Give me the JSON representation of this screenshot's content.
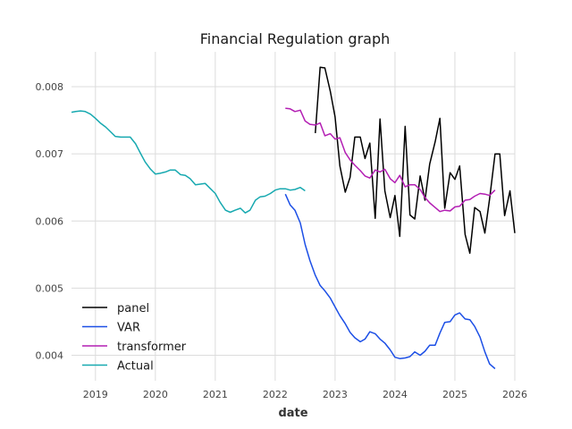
{
  "chart_data": {
    "type": "line",
    "title": "Financial Regulation graph",
    "xlabel": "date",
    "ylabel": "",
    "xlim": [
      2018.6,
      2026.0
    ],
    "ylim": [
      0.00362,
      0.00852
    ],
    "x_ticks": [
      2019,
      2020,
      2021,
      2022,
      2023,
      2024,
      2025,
      2026
    ],
    "x_tick_labels": [
      "2019",
      "2020",
      "2021",
      "2022",
      "2023",
      "2024",
      "2025",
      "2026"
    ],
    "y_ticks": [
      0.004,
      0.005,
      0.006,
      0.007,
      0.008
    ],
    "y_tick_labels": [
      "0.004",
      "0.005",
      "0.006",
      "0.007",
      "0.008"
    ],
    "grid": true,
    "legend_position": "lower-left",
    "series": [
      {
        "name": "panel",
        "color": "#000000",
        "points": [
          [
            2022.67,
            0.00731
          ],
          [
            2022.75,
            0.00829
          ],
          [
            2022.83,
            0.00828
          ],
          [
            2022.92,
            0.00793
          ],
          [
            2023.0,
            0.00755
          ],
          [
            2023.08,
            0.00682
          ],
          [
            2023.17,
            0.00643
          ],
          [
            2023.25,
            0.00665
          ],
          [
            2023.33,
            0.00725
          ],
          [
            2023.42,
            0.00725
          ],
          [
            2023.5,
            0.00693
          ],
          [
            2023.58,
            0.00716
          ],
          [
            2023.67,
            0.00604
          ],
          [
            2023.75,
            0.00752
          ],
          [
            2023.83,
            0.00645
          ],
          [
            2023.92,
            0.00605
          ],
          [
            2024.0,
            0.00638
          ],
          [
            2024.08,
            0.00577
          ],
          [
            2024.17,
            0.00741
          ],
          [
            2024.25,
            0.00609
          ],
          [
            2024.33,
            0.00603
          ],
          [
            2024.42,
            0.00667
          ],
          [
            2024.5,
            0.00631
          ],
          [
            2024.58,
            0.00685
          ],
          [
            2024.67,
            0.00718
          ],
          [
            2024.75,
            0.00753
          ],
          [
            2024.83,
            0.00619
          ],
          [
            2024.92,
            0.00672
          ],
          [
            2025.0,
            0.00662
          ],
          [
            2025.08,
            0.00682
          ],
          [
            2025.17,
            0.0058
          ],
          [
            2025.25,
            0.00552
          ],
          [
            2025.33,
            0.0062
          ],
          [
            2025.42,
            0.00614
          ],
          [
            2025.5,
            0.00582
          ],
          [
            2025.58,
            0.00633
          ],
          [
            2025.67,
            0.007
          ],
          [
            2025.75,
            0.007
          ],
          [
            2025.83,
            0.00608
          ],
          [
            2025.92,
            0.00645
          ],
          [
            2026.0,
            0.00582
          ]
        ]
      },
      {
        "name": "VAR",
        "color": "#1c4fe6",
        "points": [
          [
            2022.17,
            0.0064
          ],
          [
            2022.25,
            0.00624
          ],
          [
            2022.33,
            0.00616
          ],
          [
            2022.42,
            0.00597
          ],
          [
            2022.5,
            0.00565
          ],
          [
            2022.58,
            0.00541
          ],
          [
            2022.67,
            0.00519
          ],
          [
            2022.75,
            0.00504
          ],
          [
            2022.83,
            0.00496
          ],
          [
            2022.92,
            0.00485
          ],
          [
            2023.0,
            0.00472
          ],
          [
            2023.08,
            0.00459
          ],
          [
            2023.17,
            0.00447
          ],
          [
            2023.25,
            0.00434
          ],
          [
            2023.33,
            0.00426
          ],
          [
            2023.42,
            0.0042
          ],
          [
            2023.5,
            0.00424
          ],
          [
            2023.58,
            0.00435
          ],
          [
            2023.67,
            0.00432
          ],
          [
            2023.75,
            0.00424
          ],
          [
            2023.83,
            0.00418
          ],
          [
            2023.92,
            0.00408
          ],
          [
            2024.0,
            0.00397
          ],
          [
            2024.08,
            0.00395
          ],
          [
            2024.17,
            0.00396
          ],
          [
            2024.25,
            0.00398
          ],
          [
            2024.33,
            0.00405
          ],
          [
            2024.42,
            0.004
          ],
          [
            2024.5,
            0.00406
          ],
          [
            2024.58,
            0.00415
          ],
          [
            2024.67,
            0.00415
          ],
          [
            2024.75,
            0.00433
          ],
          [
            2024.83,
            0.00449
          ],
          [
            2024.92,
            0.0045
          ],
          [
            2025.0,
            0.0046
          ],
          [
            2025.08,
            0.00463
          ],
          [
            2025.17,
            0.00454
          ],
          [
            2025.25,
            0.00453
          ],
          [
            2025.33,
            0.00443
          ],
          [
            2025.42,
            0.00427
          ],
          [
            2025.5,
            0.00405
          ],
          [
            2025.58,
            0.00387
          ],
          [
            2025.67,
            0.0038
          ]
        ]
      },
      {
        "name": "transformer",
        "color": "#b31eb3",
        "points": [
          [
            2022.17,
            0.00768
          ],
          [
            2022.25,
            0.00767
          ],
          [
            2022.33,
            0.00763
          ],
          [
            2022.42,
            0.00765
          ],
          [
            2022.5,
            0.00749
          ],
          [
            2022.58,
            0.00744
          ],
          [
            2022.67,
            0.00743
          ],
          [
            2022.75,
            0.00746
          ],
          [
            2022.83,
            0.00727
          ],
          [
            2022.92,
            0.0073
          ],
          [
            2023.0,
            0.00722
          ],
          [
            2023.08,
            0.00724
          ],
          [
            2023.17,
            0.00702
          ],
          [
            2023.25,
            0.00691
          ],
          [
            2023.33,
            0.00683
          ],
          [
            2023.42,
            0.00675
          ],
          [
            2023.5,
            0.00667
          ],
          [
            2023.58,
            0.00664
          ],
          [
            2023.67,
            0.00676
          ],
          [
            2023.75,
            0.00673
          ],
          [
            2023.83,
            0.00677
          ],
          [
            2023.92,
            0.00663
          ],
          [
            2024.0,
            0.00657
          ],
          [
            2024.08,
            0.00668
          ],
          [
            2024.17,
            0.00651
          ],
          [
            2024.25,
            0.00654
          ],
          [
            2024.33,
            0.00654
          ],
          [
            2024.42,
            0.00647
          ],
          [
            2024.5,
            0.00635
          ],
          [
            2024.58,
            0.00627
          ],
          [
            2024.67,
            0.0062
          ],
          [
            2024.75,
            0.00614
          ],
          [
            2024.83,
            0.00616
          ],
          [
            2024.92,
            0.00615
          ],
          [
            2025.0,
            0.00621
          ],
          [
            2025.08,
            0.00622
          ],
          [
            2025.17,
            0.00631
          ],
          [
            2025.25,
            0.00632
          ],
          [
            2025.33,
            0.00637
          ],
          [
            2025.42,
            0.00641
          ],
          [
            2025.5,
            0.0064
          ],
          [
            2025.58,
            0.00638
          ],
          [
            2025.67,
            0.00646
          ]
        ]
      },
      {
        "name": "Actual",
        "color": "#17a9b0",
        "points": [
          [
            2018.6,
            0.00762
          ],
          [
            2018.67,
            0.00763
          ],
          [
            2018.75,
            0.00764
          ],
          [
            2018.83,
            0.00763
          ],
          [
            2018.92,
            0.00759
          ],
          [
            2019.0,
            0.00753
          ],
          [
            2019.08,
            0.00746
          ],
          [
            2019.17,
            0.0074
          ],
          [
            2019.25,
            0.00733
          ],
          [
            2019.33,
            0.00726
          ],
          [
            2019.42,
            0.00725
          ],
          [
            2019.5,
            0.00725
          ],
          [
            2019.58,
            0.00725
          ],
          [
            2019.67,
            0.00715
          ],
          [
            2019.75,
            0.00701
          ],
          [
            2019.83,
            0.00688
          ],
          [
            2019.92,
            0.00677
          ],
          [
            2020.0,
            0.0067
          ],
          [
            2020.08,
            0.00671
          ],
          [
            2020.17,
            0.00673
          ],
          [
            2020.25,
            0.00676
          ],
          [
            2020.33,
            0.00676
          ],
          [
            2020.42,
            0.00669
          ],
          [
            2020.5,
            0.00668
          ],
          [
            2020.58,
            0.00663
          ],
          [
            2020.67,
            0.00654
          ],
          [
            2020.75,
            0.00655
          ],
          [
            2020.83,
            0.00656
          ],
          [
            2020.92,
            0.00648
          ],
          [
            2021.0,
            0.00641
          ],
          [
            2021.08,
            0.00628
          ],
          [
            2021.17,
            0.00616
          ],
          [
            2021.25,
            0.00613
          ],
          [
            2021.33,
            0.00616
          ],
          [
            2021.42,
            0.00619
          ],
          [
            2021.5,
            0.00612
          ],
          [
            2021.58,
            0.00616
          ],
          [
            2021.67,
            0.00631
          ],
          [
            2021.75,
            0.00636
          ],
          [
            2021.83,
            0.00637
          ],
          [
            2021.92,
            0.00641
          ],
          [
            2022.0,
            0.00646
          ],
          [
            2022.08,
            0.00648
          ],
          [
            2022.17,
            0.00648
          ],
          [
            2022.25,
            0.00646
          ],
          [
            2022.33,
            0.00647
          ],
          [
            2022.42,
            0.0065
          ],
          [
            2022.5,
            0.00645
          ]
        ]
      }
    ]
  },
  "colors": {
    "background": "#ffffff",
    "grid": "#dcdcdc"
  }
}
